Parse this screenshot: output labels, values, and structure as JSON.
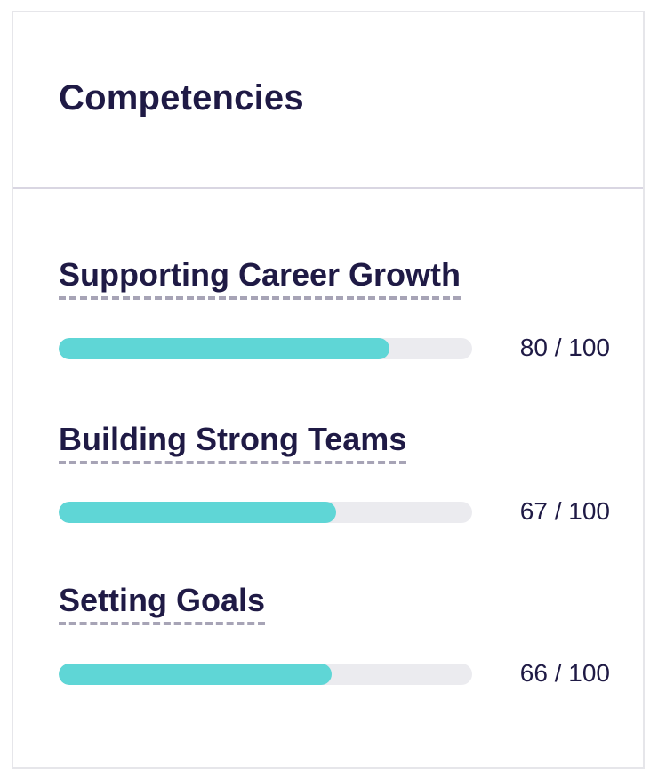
{
  "card": {
    "title": "Competencies"
  },
  "competencies": [
    {
      "name": "Supporting Career Growth",
      "score_text": "80 / 100",
      "score": 80,
      "max": 100
    },
    {
      "name": "Building Strong Teams",
      "score_text": "67 / 100",
      "score": 67,
      "max": 100
    },
    {
      "name": "Setting Goals",
      "score_text": "66 / 100",
      "score": 66,
      "max": 100
    }
  ],
  "colors": {
    "text": "#1f1a45",
    "progress_fill": "#5fd6d6",
    "progress_track": "#ebebef",
    "underline": "#a7a4b6",
    "divider": "#d9d6e2"
  }
}
